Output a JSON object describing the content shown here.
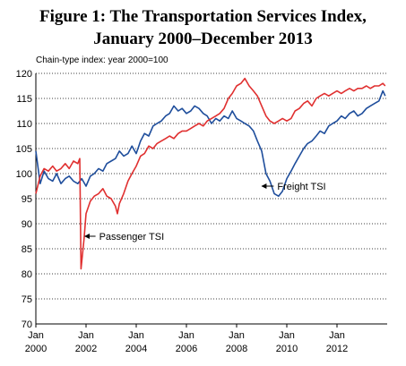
{
  "title_line1": "Figure 1: The Transportation Services Index,",
  "title_line2": "January 2000–December 2013",
  "chart_data": {
    "type": "line",
    "title": "Figure 1: The Transportation Services Index, January 2000–December 2013",
    "subtitle": "Chain-type index: year 2000=100",
    "xlabel": "",
    "ylabel": "",
    "xlim": [
      2000.0,
      2014.0
    ],
    "ylim": [
      70,
      120
    ],
    "y_ticks": [
      70,
      75,
      80,
      85,
      90,
      95,
      100,
      105,
      110,
      115,
      120
    ],
    "x_ticks": [
      {
        "x": 2000,
        "month": "Jan",
        "year": "2000"
      },
      {
        "x": 2002,
        "month": "Jan",
        "year": "2002"
      },
      {
        "x": 2004,
        "month": "Jan",
        "year": "2004"
      },
      {
        "x": 2006,
        "month": "Jan",
        "year": "2006"
      },
      {
        "x": 2008,
        "month": "Jan",
        "year": "2008"
      },
      {
        "x": 2010,
        "month": "Jan",
        "year": "2010"
      },
      {
        "x": 2012,
        "month": "Jan",
        "year": "2012"
      }
    ],
    "grid": "horizontal dotted",
    "series": [
      {
        "name": "Freight TSI",
        "color": "#1f4e9c",
        "x": [
          2000.0,
          2000.17,
          2000.33,
          2000.5,
          2000.67,
          2000.83,
          2001.0,
          2001.17,
          2001.33,
          2001.5,
          2001.67,
          2001.83,
          2002.0,
          2002.17,
          2002.33,
          2002.5,
          2002.67,
          2002.83,
          2003.0,
          2003.17,
          2003.33,
          2003.5,
          2003.67,
          2003.83,
          2004.0,
          2004.17,
          2004.33,
          2004.5,
          2004.67,
          2004.83,
          2005.0,
          2005.17,
          2005.33,
          2005.5,
          2005.67,
          2005.83,
          2006.0,
          2006.17,
          2006.33,
          2006.5,
          2006.67,
          2006.83,
          2007.0,
          2007.17,
          2007.33,
          2007.5,
          2007.67,
          2007.83,
          2008.0,
          2008.17,
          2008.33,
          2008.5,
          2008.67,
          2008.83,
          2009.0,
          2009.17,
          2009.33,
          2009.5,
          2009.67,
          2009.83,
          2010.0,
          2010.17,
          2010.33,
          2010.5,
          2010.67,
          2010.83,
          2011.0,
          2011.17,
          2011.33,
          2011.5,
          2011.67,
          2011.83,
          2012.0,
          2012.17,
          2012.33,
          2012.5,
          2012.67,
          2012.83,
          2013.0,
          2013.17,
          2013.33,
          2013.5,
          2013.67,
          2013.83,
          2013.92
        ],
        "values": [
          104.5,
          98.0,
          100.5,
          99.0,
          98.5,
          100.0,
          98.0,
          99.0,
          99.5,
          98.5,
          98.0,
          99.0,
          97.5,
          99.5,
          100.0,
          101.0,
          100.5,
          102.0,
          102.5,
          103.0,
          104.5,
          103.5,
          104.0,
          105.5,
          104.0,
          106.5,
          108.0,
          107.5,
          109.5,
          110.0,
          110.5,
          111.5,
          112.0,
          113.5,
          112.5,
          113.0,
          112.0,
          112.5,
          113.5,
          113.0,
          112.0,
          111.5,
          110.0,
          111.0,
          110.5,
          111.5,
          111.0,
          112.5,
          111.0,
          110.5,
          110.0,
          109.5,
          108.5,
          106.5,
          104.5,
          100.0,
          98.5,
          96.0,
          95.5,
          96.5,
          99.0,
          100.5,
          102.0,
          103.5,
          105.0,
          106.0,
          106.5,
          107.5,
          108.5,
          108.0,
          109.5,
          110.0,
          110.5,
          111.5,
          111.0,
          112.0,
          112.5,
          111.5,
          112.0,
          113.0,
          113.5,
          114.0,
          114.5,
          116.5,
          115.5
        ]
      },
      {
        "name": "Passenger TSI",
        "color": "#e03030",
        "x": [
          2000.0,
          2000.17,
          2000.33,
          2000.5,
          2000.67,
          2000.83,
          2001.0,
          2001.17,
          2001.33,
          2001.5,
          2001.67,
          2001.75,
          2001.8,
          2001.92,
          2002.0,
          2002.17,
          2002.33,
          2002.5,
          2002.67,
          2002.83,
          2003.0,
          2003.17,
          2003.25,
          2003.33,
          2003.5,
          2003.67,
          2003.83,
          2004.0,
          2004.17,
          2004.33,
          2004.5,
          2004.67,
          2004.83,
          2005.0,
          2005.17,
          2005.33,
          2005.5,
          2005.67,
          2005.83,
          2006.0,
          2006.17,
          2006.33,
          2006.5,
          2006.67,
          2006.83,
          2007.0,
          2007.17,
          2007.33,
          2007.5,
          2007.67,
          2007.83,
          2008.0,
          2008.17,
          2008.33,
          2008.5,
          2008.67,
          2008.83,
          2009.0,
          2009.17,
          2009.33,
          2009.5,
          2009.67,
          2009.83,
          2010.0,
          2010.17,
          2010.33,
          2010.5,
          2010.67,
          2010.83,
          2011.0,
          2011.17,
          2011.33,
          2011.5,
          2011.67,
          2011.83,
          2012.0,
          2012.17,
          2012.33,
          2012.5,
          2012.67,
          2012.83,
          2013.0,
          2013.17,
          2013.33,
          2013.5,
          2013.67,
          2013.83,
          2013.92
        ],
        "values": [
          96.0,
          99.5,
          101.0,
          100.5,
          101.5,
          100.5,
          101.0,
          102.0,
          101.0,
          102.5,
          102.0,
          103.0,
          81.0,
          87.0,
          92.0,
          94.5,
          95.5,
          96.0,
          97.0,
          95.5,
          95.0,
          93.5,
          92.0,
          94.0,
          96.0,
          98.5,
          100.0,
          101.5,
          103.5,
          104.0,
          105.5,
          105.0,
          106.0,
          106.5,
          107.0,
          107.5,
          107.0,
          108.0,
          108.5,
          108.5,
          109.0,
          109.5,
          110.0,
          109.5,
          110.5,
          111.0,
          111.5,
          112.0,
          113.0,
          115.0,
          116.0,
          117.5,
          118.0,
          119.0,
          117.5,
          116.5,
          115.5,
          113.5,
          111.5,
          110.5,
          110.0,
          110.5,
          111.0,
          110.5,
          111.0,
          112.5,
          113.0,
          114.0,
          114.5,
          113.5,
          115.0,
          115.5,
          116.0,
          115.5,
          116.0,
          116.5,
          116.0,
          116.5,
          117.0,
          116.5,
          117.0,
          117.0,
          117.5,
          117.0,
          117.5,
          117.5,
          118.0,
          117.5
        ]
      }
    ],
    "annotations": [
      {
        "text": "Freight TSI",
        "x": 2009.55,
        "y": 97.5,
        "arrow_to_x": 2009.0,
        "arrow_to_y": 97.5
      },
      {
        "text": "Passenger TSI",
        "x": 2002.45,
        "y": 87.5,
        "arrow_to_x": 2001.95,
        "arrow_to_y": 87.5
      }
    ]
  }
}
